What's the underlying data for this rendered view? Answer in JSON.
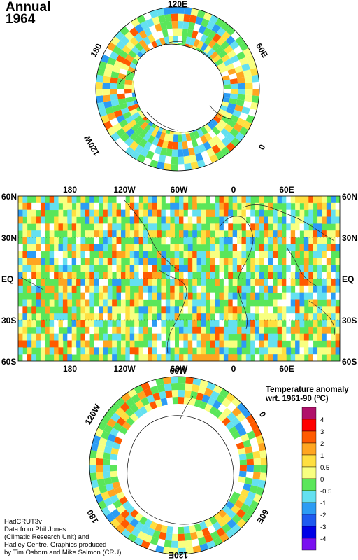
{
  "title": {
    "line1": "Annual",
    "line2": "1964"
  },
  "north_polar": {
    "labels": {
      "top": "120E",
      "right": "60E",
      "bottom_right": "0",
      "left": "180",
      "bottom_left": "120W"
    }
  },
  "main_map": {
    "top_lon_labels": [
      "180",
      "120W",
      "60W",
      "0",
      "60E"
    ],
    "bottom_lon_labels": [
      "180",
      "120W",
      "60W",
      "0",
      "60E"
    ],
    "left_lat_labels": [
      "60N",
      "30N",
      "EQ",
      "30S",
      "60S"
    ],
    "right_lat_labels": [
      "60N",
      "30N",
      "EQ",
      "30S",
      "60S"
    ]
  },
  "south_polar": {
    "labels": {
      "top": "60W",
      "left": "120W",
      "right": "0",
      "bottom_left": "180",
      "bottom_right": "60E",
      "bottom": "120E"
    }
  },
  "legend": {
    "title_line1": "Temperature anomaly",
    "title_line2": "wrt. 1961-90  (°C)",
    "ticks": [
      "4",
      "3",
      "2",
      "1",
      "0.5",
      "0",
      "-0.5",
      "-1",
      "-2",
      "-3",
      "-4"
    ],
    "colors": [
      "#b0106a",
      "#ff0000",
      "#ff5a00",
      "#ffa520",
      "#ffdf40",
      "#f8ff80",
      "#5ae65a",
      "#64e0f0",
      "#2c9cf4",
      "#1e5af0",
      "#0000e6",
      "#7a10f0"
    ]
  },
  "credit": [
    "HadCRUT3v",
    "Data from Phil Jones",
    "(Climatic Research Unit) and",
    "Hadley Centre.  Graphics produced",
    "by Tim Osborn and Mike Salmon (CRU)."
  ]
}
